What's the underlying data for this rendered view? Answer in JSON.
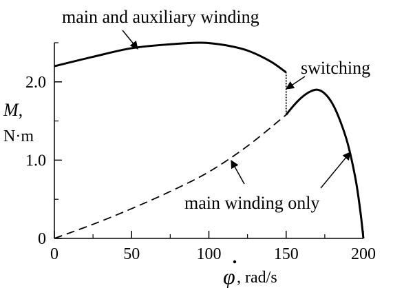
{
  "chart_data": {
    "type": "line",
    "xlabel": {
      "symbol": "φ",
      "unit": ", rad/s"
    },
    "ylabel": {
      "symbol": "M,",
      "unit": "N·m"
    },
    "xlim": [
      0,
      200
    ],
    "ylim": [
      0,
      2.5
    ],
    "x_ticks": [
      {
        "value": 0,
        "label": "0"
      },
      {
        "value": 50,
        "label": "50"
      },
      {
        "value": 100,
        "label": "100"
      },
      {
        "value": 150,
        "label": "150"
      },
      {
        "value": 200,
        "label": "200"
      }
    ],
    "y_ticks": [
      {
        "value": 0,
        "label": "0"
      },
      {
        "value": 1.0,
        "label": "1.0"
      },
      {
        "value": 2.0,
        "label": "2.0"
      }
    ],
    "series": [
      {
        "name": "main and auxiliary winding",
        "style": "solid",
        "x": [
          0,
          25,
          50,
          75,
          95,
          110,
          125,
          140,
          150
        ],
        "y": [
          2.2,
          2.32,
          2.43,
          2.48,
          2.5,
          2.47,
          2.4,
          2.26,
          2.12
        ]
      },
      {
        "name": "main winding only",
        "style": "dashed",
        "x": [
          0,
          25,
          50,
          75,
          100,
          125,
          150
        ],
        "y": [
          0,
          0.18,
          0.38,
          0.6,
          0.85,
          1.18,
          1.58
        ]
      },
      {
        "name": "main winding only",
        "style": "solid",
        "x": [
          150,
          155,
          160,
          165,
          170,
          175,
          180,
          185,
          190,
          195,
          198,
          200
        ],
        "y": [
          1.58,
          1.7,
          1.8,
          1.87,
          1.9,
          1.85,
          1.72,
          1.5,
          1.2,
          0.75,
          0.35,
          0
        ]
      },
      {
        "name": "switching",
        "style": "dotted",
        "x": [
          150,
          150
        ],
        "y": [
          1.58,
          2.12
        ]
      }
    ],
    "annotations": [
      {
        "text": "main and auxiliary winding",
        "points_to": {
          "x": 55,
          "y": 2.44
        }
      },
      {
        "text": "switching",
        "points_to": {
          "x": 150,
          "y": 1.95
        }
      },
      {
        "text": "main winding only",
        "points_to": [
          {
            "x": 115,
            "y": 1.0
          },
          {
            "x": 192,
            "y": 1.05
          }
        ]
      }
    ],
    "grid": false,
    "legend": "none"
  }
}
